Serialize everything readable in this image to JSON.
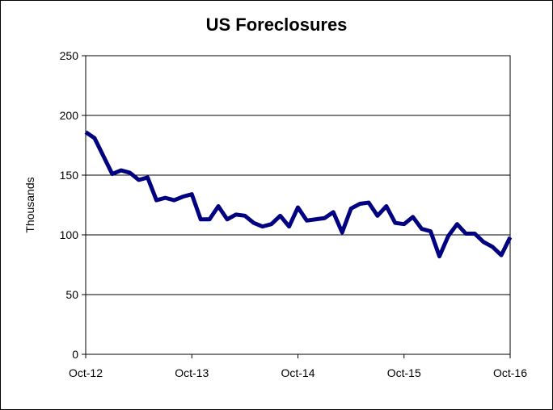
{
  "chart_data": {
    "type": "line",
    "title": "US Foreclosures",
    "y_label": "Thousands",
    "categories": [
      "Oct-12",
      null,
      null,
      null,
      null,
      null,
      null,
      null,
      null,
      null,
      null,
      null,
      "Oct-13",
      null,
      null,
      null,
      null,
      null,
      null,
      null,
      null,
      null,
      null,
      null,
      "Oct-14",
      null,
      null,
      null,
      null,
      null,
      null,
      null,
      null,
      null,
      null,
      null,
      "Oct-15",
      null,
      null,
      null,
      null,
      null,
      null,
      null,
      null,
      null,
      null,
      null,
      "Oct-16"
    ],
    "series": [
      {
        "name": "US Foreclosures",
        "color": "#000080",
        "values": [
          186,
          181,
          166,
          151,
          154,
          152,
          146,
          148,
          129,
          131,
          129,
          132,
          134,
          113,
          113,
          124,
          113,
          117,
          116,
          110,
          107,
          109,
          116,
          107,
          123,
          112,
          113,
          114,
          119,
          102,
          122,
          126,
          127,
          116,
          124,
          110,
          109,
          115,
          105,
          103,
          82,
          99,
          109,
          101,
          101,
          94,
          90,
          83,
          98
        ]
      }
    ],
    "ylim": [
      0,
      250
    ],
    "yticks": [
      0,
      50,
      100,
      150,
      200,
      250
    ],
    "grid": true
  }
}
